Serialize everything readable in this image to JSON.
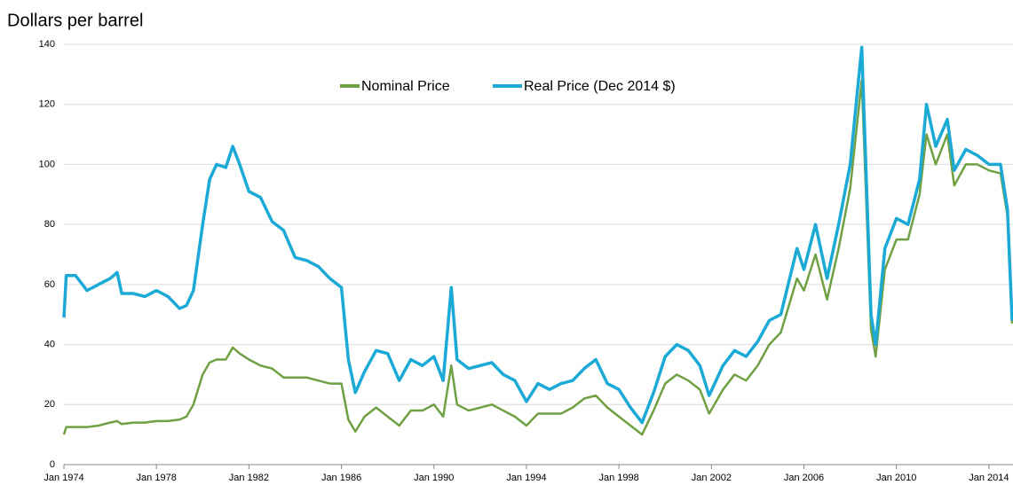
{
  "chart_data": {
    "type": "line",
    "title": "Dollars per barrel",
    "x": [
      1974,
      1974.1,
      1974.5,
      1975,
      1975.5,
      1976,
      1976.3,
      1976.5,
      1977,
      1977.5,
      1978,
      1978.5,
      1979,
      1979.3,
      1979.6,
      1980,
      1980.3,
      1980.6,
      1981,
      1981.3,
      1981.6,
      1982,
      1982.5,
      1983,
      1983.5,
      1984,
      1984.5,
      1985,
      1985.5,
      1986,
      1986.3,
      1986.6,
      1987,
      1987.5,
      1988,
      1988.5,
      1989,
      1989.5,
      1990,
      1990.4,
      1990.75,
      1991,
      1991.5,
      1992,
      1992.5,
      1993,
      1993.5,
      1994,
      1994.5,
      1995,
      1995.5,
      1996,
      1996.5,
      1997,
      1997.5,
      1998,
      1998.5,
      1999,
      1999.5,
      2000,
      2000.5,
      2001,
      2001.5,
      2001.9,
      2002.5,
      2003,
      2003.5,
      2004,
      2004.5,
      2005,
      2005.7,
      2006,
      2006.5,
      2007,
      2007.5,
      2008,
      2008.5,
      2008.9,
      2009.1,
      2009.5,
      2010,
      2010.5,
      2011,
      2011.3,
      2011.7,
      2012.2,
      2012.5,
      2013,
      2013.5,
      2014,
      2014.5,
      2014.8,
      2015
    ],
    "series": [
      {
        "name": "Nominal Price",
        "color": "#6fa043",
        "values": [
          10,
          12.5,
          12.5,
          12.5,
          13,
          14,
          14.5,
          13.5,
          14,
          14,
          14.5,
          14.5,
          15,
          16,
          20,
          30,
          34,
          35,
          35,
          39,
          37,
          35,
          33,
          32,
          29,
          29,
          29,
          28,
          27,
          27,
          15,
          11,
          16,
          19,
          16,
          13,
          18,
          18,
          20,
          16,
          33,
          20,
          18,
          19,
          20,
          18,
          16,
          13,
          17,
          17,
          17,
          19,
          22,
          23,
          19,
          16,
          13,
          10,
          18,
          27,
          30,
          28,
          25,
          17,
          25,
          30,
          28,
          33,
          40,
          44,
          62,
          58,
          70,
          55,
          72,
          92,
          128,
          45,
          36,
          65,
          75,
          75,
          90,
          110,
          100,
          110,
          93,
          100,
          100,
          98,
          97,
          83,
          47
        ]
      },
      {
        "name": "Real Price (Dec 2014 $)",
        "color": "#1ba9d6",
        "values": [
          49,
          63,
          63,
          58,
          60,
          62,
          64,
          57,
          57,
          56,
          58,
          56,
          52,
          53,
          58,
          80,
          95,
          100,
          99,
          106,
          100,
          91,
          89,
          81,
          78,
          69,
          68,
          66,
          62,
          59,
          35,
          24,
          31,
          38,
          37,
          28,
          35,
          33,
          36,
          28,
          59,
          35,
          32,
          33,
          34,
          30,
          28,
          21,
          27,
          25,
          27,
          28,
          32,
          35,
          27,
          25,
          19,
          14,
          24,
          36,
          40,
          38,
          33,
          23,
          33,
          38,
          36,
          41,
          48,
          50,
          72,
          65,
          80,
          62,
          80,
          100,
          139,
          50,
          40,
          72,
          82,
          80,
          95,
          120,
          106,
          115,
          98,
          105,
          103,
          100,
          100,
          85,
          48
        ]
      }
    ],
    "xlim": [
      1974,
      2015.04
    ],
    "xticks": [
      {
        "value": 1974,
        "label": "Jan 1974"
      },
      {
        "value": 1978,
        "label": "Jan 1978"
      },
      {
        "value": 1982,
        "label": "Jan 1982"
      },
      {
        "value": 1986,
        "label": "Jan 1986"
      },
      {
        "value": 1990,
        "label": "Jan 1990"
      },
      {
        "value": 1994,
        "label": "Jan 1994"
      },
      {
        "value": 1998,
        "label": "Jan 1998"
      },
      {
        "value": 2002,
        "label": "Jan 2002"
      },
      {
        "value": 2006,
        "label": "Jan 2006"
      },
      {
        "value": 2010,
        "label": "Jan 2010"
      },
      {
        "value": 2014,
        "label": "Jan 2014"
      }
    ],
    "ylim": [
      0,
      140
    ],
    "yticks": [
      0,
      20,
      40,
      60,
      80,
      100,
      120,
      140
    ],
    "grid": true,
    "legend": "top"
  }
}
